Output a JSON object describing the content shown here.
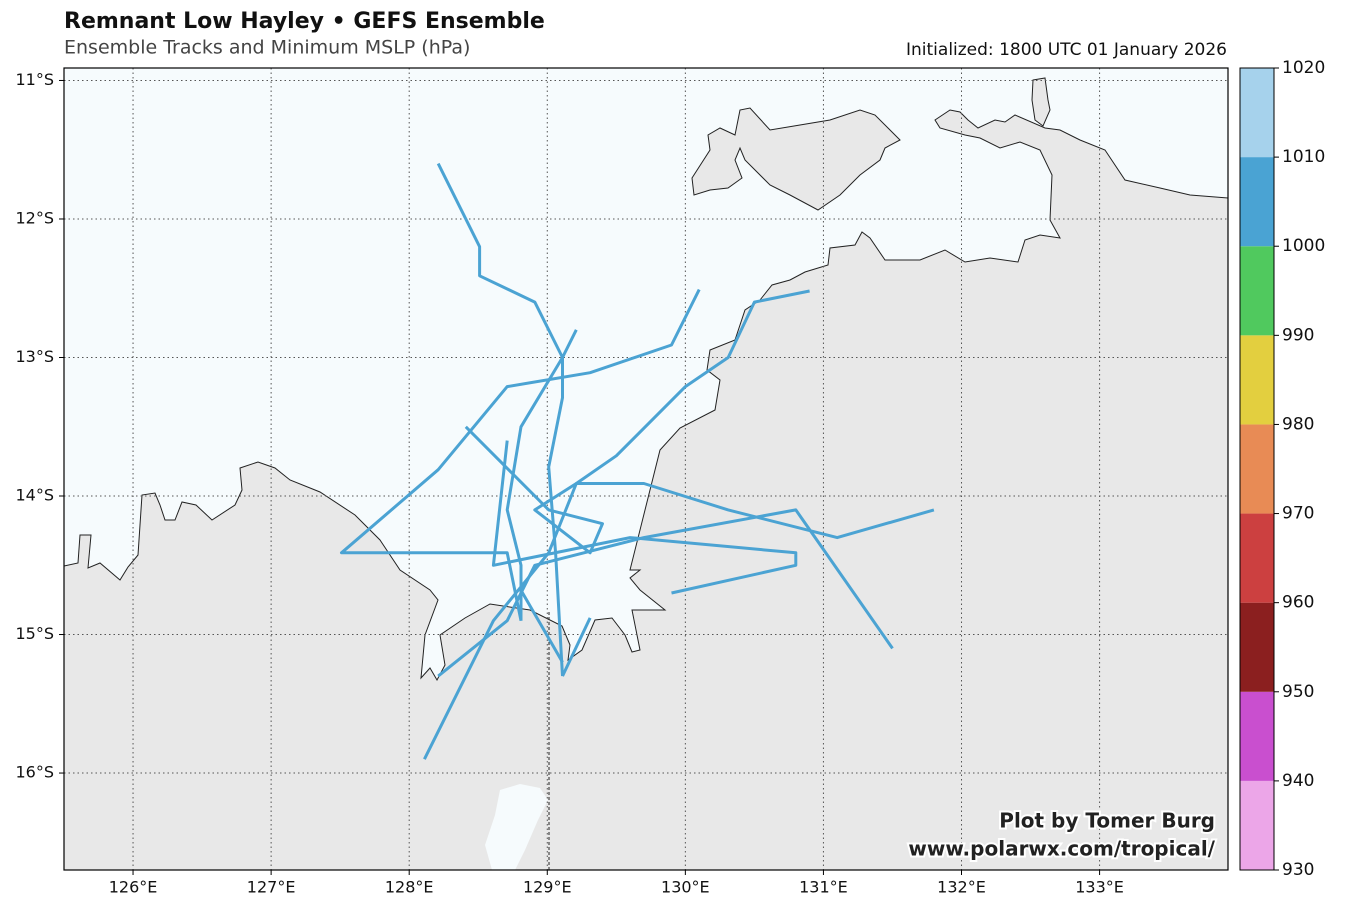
{
  "title": "Remnant Low Hayley • GEFS Ensemble",
  "subtitle": "Ensemble Tracks and Minimum MSLP (hPa)",
  "initialized": "Initialized: 1800 UTC 01 January 2026",
  "credit": [
    "Plot by Tomer Burg",
    "www.polarwx.com/tropical/"
  ],
  "map": {
    "xlim": [
      125.5,
      133.93
    ],
    "ylim": [
      -16.7,
      -10.91
    ],
    "xticks": [
      {
        "value": 126,
        "label": "126°E"
      },
      {
        "value": 127,
        "label": "127°E"
      },
      {
        "value": 128,
        "label": "128°E"
      },
      {
        "value": 129,
        "label": "129°E"
      },
      {
        "value": 130,
        "label": "130°E"
      },
      {
        "value": 131,
        "label": "131°E"
      },
      {
        "value": 132,
        "label": "132°E"
      },
      {
        "value": 133,
        "label": "133°E"
      }
    ],
    "yticks": [
      {
        "value": -11,
        "label": "11°S"
      },
      {
        "value": -12,
        "label": "12°S"
      },
      {
        "value": -13,
        "label": "13°S"
      },
      {
        "value": -14,
        "label": "14°S"
      },
      {
        "value": -15,
        "label": "15°S"
      },
      {
        "value": -16,
        "label": "16°S"
      }
    ],
    "grid": true,
    "tracks": [
      {
        "color": "#4ba3d3",
        "lon": [
          128.21,
          128.51,
          128.51,
          128.91,
          129.11,
          129.11,
          129.01,
          129.06,
          129.11
        ],
        "lat": [
          -11.6,
          -12.2,
          -12.41,
          -12.6,
          -13.0,
          -13.29,
          -13.79,
          -14.41,
          -15.3
        ]
      },
      {
        "color": "#4ba3d3",
        "lon": [
          130.1,
          129.9,
          129.31,
          128.71,
          128.21,
          127.51,
          128.71,
          128.81
        ],
        "lat": [
          -12.51,
          -12.91,
          -13.11,
          -13.21,
          -13.81,
          -14.41,
          -14.41,
          -14.9
        ]
      },
      {
        "color": "#4ba3d3",
        "lon": [
          130.9,
          130.5,
          130.31,
          130.0,
          129.5,
          129.21,
          129.01,
          128.61,
          128.11
        ],
        "lat": [
          -12.52,
          -12.6,
          -13.0,
          -13.21,
          -13.71,
          -13.91,
          -14.41,
          -14.9,
          -15.9
        ]
      },
      {
        "color": "#4ba3d3",
        "lon": [
          129.21,
          129.11,
          128.81,
          128.71,
          128.81,
          128.81
        ],
        "lat": [
          -12.8,
          -13.0,
          -13.5,
          -14.1,
          -14.5,
          -14.9
        ]
      },
      {
        "color": "#4ba3d3",
        "lon": [
          128.41,
          129.01,
          129.4,
          129.31,
          128.91,
          129.21,
          129.7,
          130.31,
          131.1,
          131.8
        ],
        "lat": [
          -13.5,
          -14.1,
          -14.2,
          -14.41,
          -14.1,
          -13.91,
          -13.91,
          -14.1,
          -14.3,
          -14.1
        ]
      },
      {
        "color": "#4ba3d3",
        "lon": [
          128.71,
          128.61,
          129.6,
          130.8,
          130.8,
          129.9
        ],
        "lat": [
          -13.6,
          -14.5,
          -14.3,
          -14.41,
          -14.5,
          -14.7
        ]
      },
      {
        "color": "#4ba3d3",
        "lon": [
          128.21,
          128.71,
          128.91,
          129.7,
          130.8,
          131.5
        ],
        "lat": [
          -15.3,
          -14.9,
          -14.5,
          -14.3,
          -14.1,
          -15.1
        ]
      },
      {
        "color": "#4ba3d3",
        "lon": [
          128.81,
          129.11
        ],
        "lat": [
          -14.68,
          -15.2
        ]
      },
      {
        "color": "#4ba3d3",
        "lon": [
          129.31,
          129.11
        ],
        "lat": [
          -14.88,
          -15.3
        ]
      }
    ]
  },
  "colorbar": {
    "ticks": [
      930,
      940,
      950,
      960,
      970,
      980,
      990,
      1000,
      1010,
      1020
    ],
    "colors": [
      "#eca6e8",
      "#c94fcf",
      "#8b1f1f",
      "#cc4040",
      "#e88b55",
      "#e3cf3f",
      "#50c95e",
      "#4aa3d3",
      "#a6d2ec"
    ]
  }
}
